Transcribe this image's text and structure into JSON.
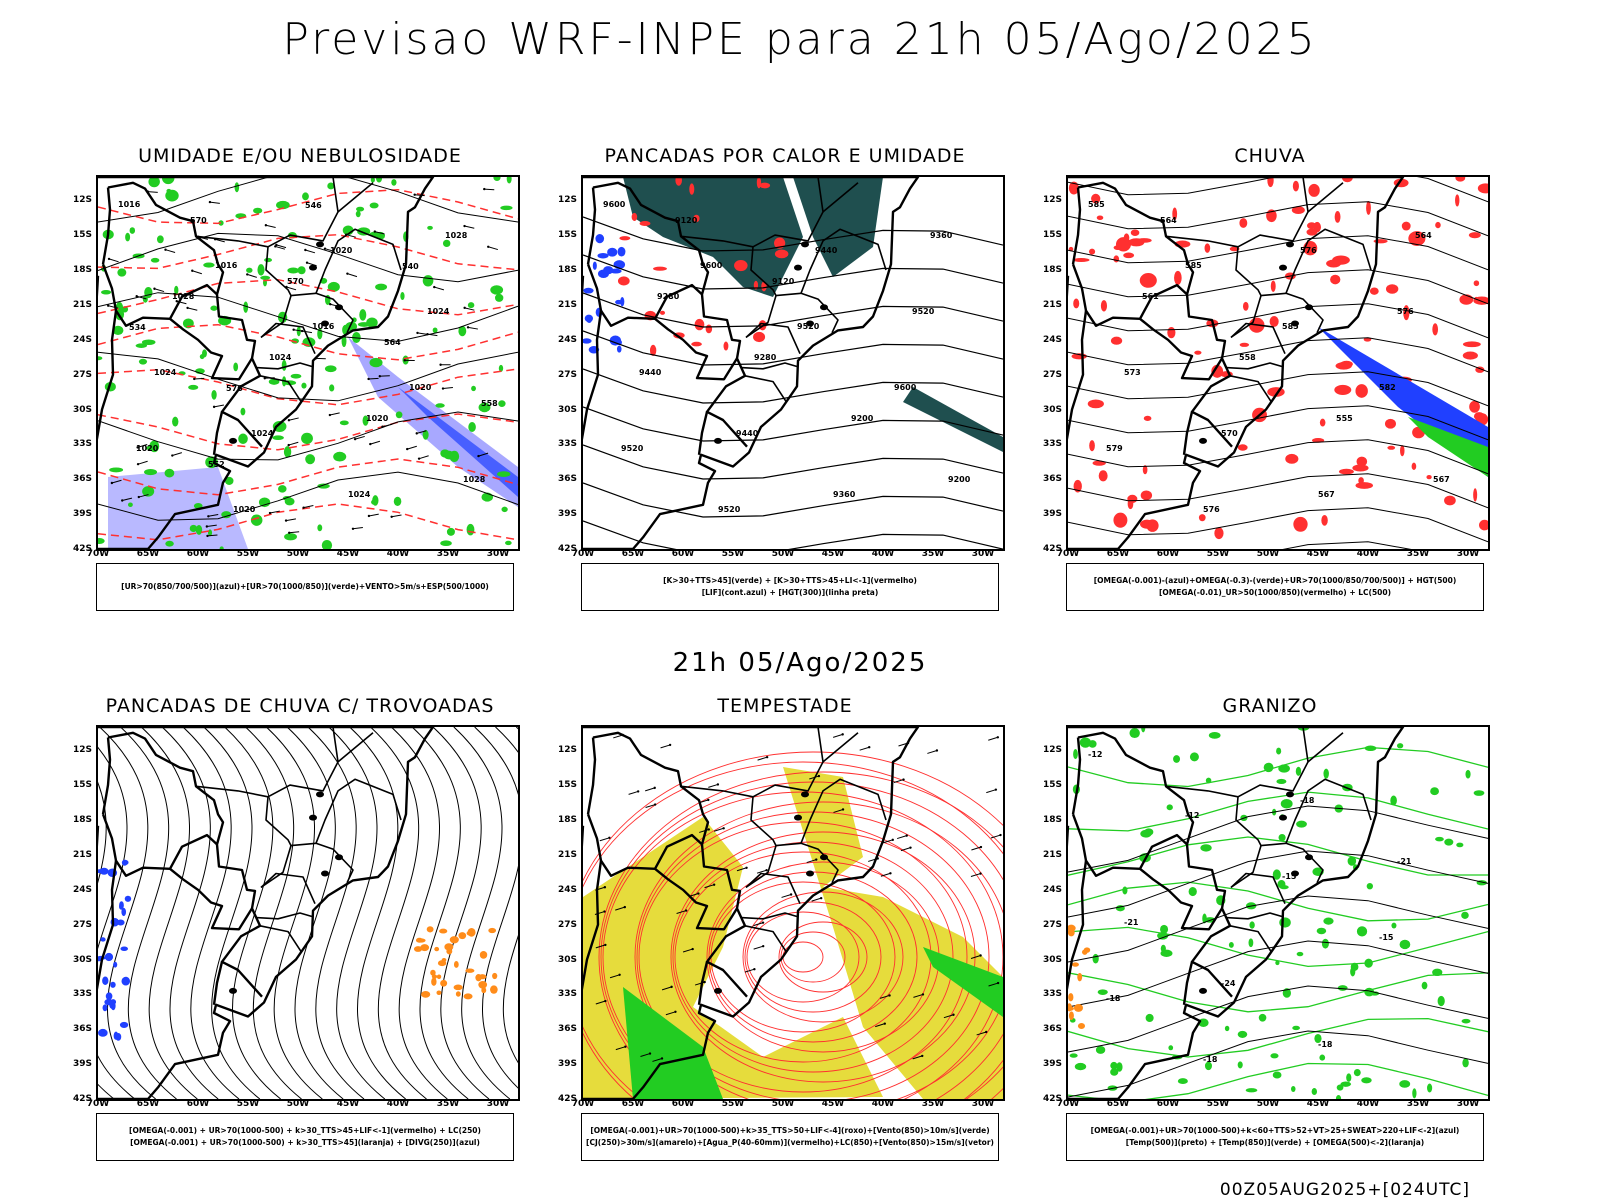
{
  "main_title": "Previsao WRF-INPE  para 21h 05/Ago/2025",
  "mid_title": "21h 05/Ago/2025",
  "footer_stamp": "00Z05AUG2025+[024UTC]",
  "lat_labels": [
    "12S",
    "15S",
    "18S",
    "21S",
    "24S",
    "27S",
    "30S",
    "33S",
    "36S",
    "39S",
    "42S"
  ],
  "lon_labels": [
    "70W",
    "65W",
    "60W",
    "55W",
    "50W",
    "45W",
    "40W",
    "35W",
    "30W"
  ],
  "colors": {
    "green": "#22cc22",
    "red": "#ff3030",
    "blue": "#2040ff",
    "lavender": "#a8a8ff",
    "teal": "#1f4f4f",
    "yellow": "#e6dc3c",
    "orange": "#ff8c1a",
    "black": "#000000"
  },
  "panels": [
    {
      "id": "umidade",
      "title": "UMIDADE E/OU NEBULOSIDADE",
      "legend_lines": [
        "[UR>70(850/700/500)](azul)+[UR>70(1000/850)](verde)+VENTO>5m/s+ESP(500/1000)"
      ],
      "contour_labels": [
        "1016",
        "1016",
        "1016",
        "1020",
        "1020",
        "1020",
        "1020",
        "1024",
        "1024",
        "1024",
        "1024",
        "1028",
        "1028",
        "1024",
        "1020",
        "1028",
        "570",
        "570",
        "564",
        "558",
        "552",
        "546",
        "540",
        "534",
        "576"
      ]
    },
    {
      "id": "pancadas-calor",
      "title": "PANCADAS POR CALOR E UMIDADE",
      "legend_lines": [
        "[K>30+TTS>45](verde) + [K>30+TTS>45+LI<-1](vermelho)",
        "[LIF](cont.azul) + [HGT(300)](linha preta)"
      ],
      "contour_labels": [
        "9600",
        "9600",
        "9520",
        "9600",
        "9520",
        "9520",
        "9440",
        "9520",
        "9440",
        "9440",
        "9360",
        "9360",
        "9280",
        "9280",
        "9200",
        "9200",
        "9120",
        "9120"
      ]
    },
    {
      "id": "chuva",
      "title": "CHUVA",
      "legend_lines": [
        "[OMEGA(-0.001)-(azul)+OMEGA(-0.3)-(verde)+UR>70(1000/850/700/500)] + HGT(500)",
        "[OMEGA(-0.01)_UR>50(1000/850)(vermelho) + LC(500)"
      ],
      "contour_labels": [
        "585",
        "585",
        "585",
        "582",
        "579",
        "576",
        "576",
        "576",
        "573",
        "570",
        "567",
        "564",
        "561",
        "558",
        "555",
        "567",
        "564"
      ]
    },
    {
      "id": "pancadas-trovoadas",
      "title": "PANCADAS DE CHUVA C/ TROVOADAS",
      "legend_lines": [
        "[OMEGA(-0.001) + UR>70(1000-500) + k>30_TTS>45+LIF<-1](vermelho) + LC(250)",
        "[OMEGA(-0.001) + UR>70(1000-500) + k>30_TTS>45](laranja) + [DIVG(250)](azul)"
      ],
      "contour_labels": []
    },
    {
      "id": "tempestade",
      "title": "TEMPESTADE",
      "legend_lines": [
        "[OMEGA(-0.001)+UR>70(1000-500)+k>35_TTS>50+LIF<-4](roxo)+[Vento(850)>10m/s](verde)",
        "[CJ(250)>30m/s](amarelo)+[Agua_P(40-60mm)](vermelho)+LC(850)+[Vento(850)>15m/s](vetor)"
      ],
      "contour_labels": []
    },
    {
      "id": "granizo",
      "title": "GRANIZO",
      "legend_lines": [
        "[OMEGA(-0.001)+UR>70(1000-500)+k<60+TTS>52+VT>25+SWEAT>220+LIF<-2](azul)",
        "[Temp(500)](preto) + [Temp(850)](verde) + [OMEGA(500)<-2](laranja)"
      ],
      "contour_labels": [
        "-12",
        "-12",
        "-15",
        "-15",
        "-18",
        "-18",
        "-18",
        "-21",
        "-21",
        "-24",
        "-18"
      ]
    }
  ]
}
